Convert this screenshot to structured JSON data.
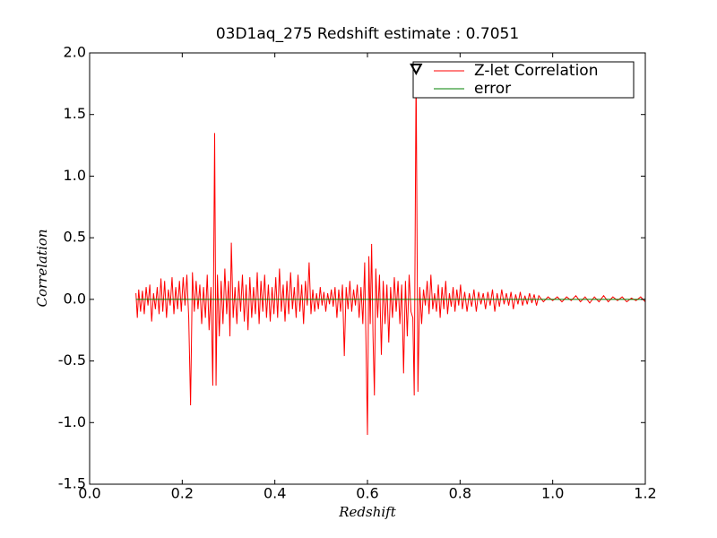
{
  "chart_data": {
    "type": "line",
    "title": "03D1aq_275 Redshift estimate : 0.7051",
    "xlabel": "Redshift",
    "ylabel": "Correlation",
    "xlim": [
      0,
      1.2
    ],
    "ylim": [
      -1.5,
      2.0
    ],
    "xticks": [
      {
        "value": 0,
        "label": "0.0"
      },
      0.2,
      0.4,
      0.6,
      0.8,
      {
        "value": 1,
        "label": "1.0"
      },
      1.2
    ],
    "yticks": [
      -1.5,
      {
        "value": -1,
        "label": "-1.0"
      },
      -0.5,
      {
        "value": 0,
        "label": "0.0"
      },
      0.5,
      {
        "value": 1,
        "label": "1.0"
      },
      1.5,
      {
        "value": 2,
        "label": "2.0"
      }
    ],
    "legend": "upper right",
    "marker": {
      "x": 0.7051,
      "y": 1.87,
      "color": "#000000"
    },
    "series": [
      {
        "name": "Z-let Correlation",
        "color": "#ff0000",
        "x": [
          0.1,
          0.103,
          0.106,
          0.11,
          0.114,
          0.118,
          0.122,
          0.126,
          0.13,
          0.134,
          0.138,
          0.142,
          0.146,
          0.15,
          0.154,
          0.158,
          0.162,
          0.166,
          0.17,
          0.174,
          0.178,
          0.182,
          0.186,
          0.19,
          0.194,
          0.198,
          0.202,
          0.206,
          0.21,
          0.214,
          0.218,
          0.222,
          0.226,
          0.23,
          0.234,
          0.238,
          0.242,
          0.246,
          0.25,
          0.254,
          0.258,
          0.262,
          0.266,
          0.27,
          0.273,
          0.276,
          0.28,
          0.284,
          0.288,
          0.292,
          0.296,
          0.3,
          0.303,
          0.306,
          0.31,
          0.314,
          0.318,
          0.322,
          0.326,
          0.33,
          0.334,
          0.338,
          0.342,
          0.346,
          0.35,
          0.354,
          0.358,
          0.362,
          0.366,
          0.37,
          0.374,
          0.378,
          0.382,
          0.386,
          0.39,
          0.394,
          0.398,
          0.402,
          0.406,
          0.41,
          0.414,
          0.418,
          0.422,
          0.426,
          0.43,
          0.434,
          0.438,
          0.442,
          0.446,
          0.45,
          0.454,
          0.458,
          0.462,
          0.466,
          0.47,
          0.474,
          0.478,
          0.482,
          0.486,
          0.49,
          0.494,
          0.498,
          0.502,
          0.506,
          0.51,
          0.514,
          0.518,
          0.522,
          0.526,
          0.53,
          0.534,
          0.538,
          0.542,
          0.546,
          0.55,
          0.554,
          0.558,
          0.562,
          0.566,
          0.57,
          0.574,
          0.578,
          0.582,
          0.586,
          0.59,
          0.594,
          0.597,
          0.6,
          0.603,
          0.606,
          0.609,
          0.612,
          0.615,
          0.618,
          0.622,
          0.626,
          0.63,
          0.634,
          0.638,
          0.642,
          0.646,
          0.65,
          0.654,
          0.658,
          0.662,
          0.666,
          0.67,
          0.674,
          0.678,
          0.682,
          0.686,
          0.69,
          0.694,
          0.698,
          0.701,
          0.705,
          0.709,
          0.713,
          0.717,
          0.721,
          0.725,
          0.729,
          0.733,
          0.737,
          0.741,
          0.745,
          0.749,
          0.753,
          0.757,
          0.761,
          0.765,
          0.769,
          0.773,
          0.777,
          0.781,
          0.785,
          0.789,
          0.793,
          0.797,
          0.801,
          0.805,
          0.81,
          0.815,
          0.82,
          0.825,
          0.83,
          0.835,
          0.84,
          0.845,
          0.85,
          0.855,
          0.86,
          0.865,
          0.87,
          0.875,
          0.88,
          0.885,
          0.89,
          0.895,
          0.9,
          0.905,
          0.91,
          0.915,
          0.92,
          0.925,
          0.93,
          0.935,
          0.94,
          0.945,
          0.95,
          0.955,
          0.96,
          0.965,
          0.97,
          0.98,
          0.99,
          1.0,
          1.01,
          1.02,
          1.03,
          1.04,
          1.05,
          1.06,
          1.07,
          1.08,
          1.09,
          1.1,
          1.11,
          1.12,
          1.13,
          1.14,
          1.15,
          1.16,
          1.17,
          1.18,
          1.19,
          1.2
        ],
        "values": [
          0.05,
          -0.15,
          0.08,
          -0.1,
          0.07,
          -0.12,
          0.1,
          -0.05,
          0.12,
          -0.18,
          0.05,
          -0.08,
          0.1,
          -0.12,
          0.17,
          -0.1,
          0.15,
          -0.15,
          0.08,
          -0.05,
          0.18,
          -0.12,
          0.1,
          -0.08,
          0.15,
          -0.1,
          0.18,
          -0.05,
          0.2,
          -0.15,
          -0.86,
          0.22,
          -0.1,
          0.15,
          -0.08,
          0.12,
          -0.2,
          0.1,
          -0.15,
          0.2,
          -0.25,
          0.1,
          -0.7,
          1.35,
          -0.7,
          0.2,
          -0.3,
          0.15,
          -0.2,
          0.25,
          -0.12,
          0.15,
          -0.3,
          0.46,
          -0.15,
          0.1,
          -0.2,
          0.15,
          -0.1,
          0.2,
          -0.18,
          0.12,
          -0.25,
          0.18,
          -0.15,
          0.1,
          -0.12,
          0.22,
          -0.2,
          0.15,
          -0.1,
          0.2,
          -0.15,
          0.12,
          -0.18,
          0.1,
          -0.12,
          0.18,
          -0.15,
          0.25,
          -0.1,
          0.12,
          -0.18,
          0.15,
          -0.12,
          0.22,
          -0.08,
          0.1,
          -0.15,
          0.2,
          -0.1,
          0.12,
          -0.2,
          0.15,
          -0.05,
          0.3,
          -0.12,
          0.08,
          -0.1,
          0.05,
          -0.08,
          0.1,
          -0.05,
          0.06,
          -0.1,
          0.05,
          -0.04,
          0.08,
          -0.06,
          0.1,
          -0.15,
          0.08,
          -0.1,
          0.12,
          -0.46,
          0.1,
          -0.08,
          0.15,
          -0.1,
          0.08,
          -0.05,
          0.12,
          -0.15,
          0.1,
          -0.2,
          0.3,
          -0.4,
          -1.1,
          0.35,
          -0.2,
          0.45,
          -0.3,
          -0.78,
          0.25,
          -0.15,
          0.2,
          -0.45,
          0.15,
          -0.2,
          0.12,
          -0.35,
          0.1,
          -0.15,
          0.18,
          -0.1,
          0.15,
          -0.2,
          0.12,
          -0.6,
          0.15,
          -0.3,
          0.2,
          -0.1,
          -0.15,
          -0.78,
          1.86,
          -0.75,
          0.1,
          -0.2,
          0.08,
          -0.05,
          0.15,
          -0.12,
          0.2,
          -0.08,
          0.05,
          -0.1,
          0.12,
          -0.15,
          0.1,
          -0.08,
          0.15,
          -0.12,
          0.05,
          -0.06,
          0.1,
          -0.1,
          0.08,
          -0.05,
          0.12,
          -0.08,
          0.06,
          -0.1,
          0.05,
          -0.06,
          0.08,
          -0.1,
          0.06,
          -0.04,
          0.05,
          -0.08,
          0.06,
          -0.05,
          0.08,
          -0.1,
          0.05,
          -0.06,
          0.08,
          -0.04,
          0.05,
          -0.05,
          0.06,
          -0.08,
          0.04,
          -0.04,
          0.06,
          -0.05,
          0.03,
          -0.04,
          0.05,
          -0.03,
          0.04,
          -0.05,
          0.03,
          -0.02,
          0.02,
          -0.01,
          0.02,
          -0.02,
          0.02,
          -0.01,
          0.03,
          -0.02,
          0.02,
          -0.03,
          0.02,
          -0.02,
          0.03,
          -0.02,
          0.02,
          -0.01,
          0.02,
          -0.02,
          0.01,
          -0.01,
          0.02,
          -0.02
        ]
      },
      {
        "name": "error",
        "color": "#008000",
        "x": [
          0.1,
          1.2
        ],
        "values": [
          0,
          0
        ]
      }
    ]
  }
}
